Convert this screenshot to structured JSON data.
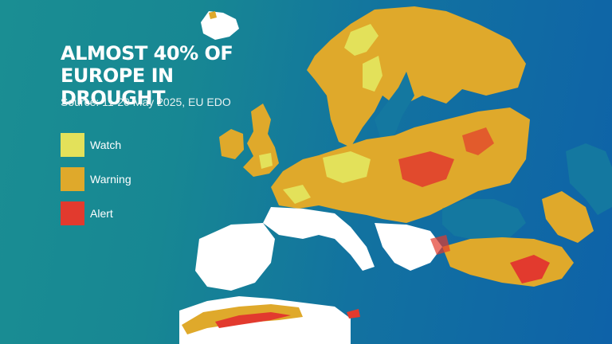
{
  "title": "ALMOST 40% OF\nEUROPE IN DROUGHT",
  "source": "Source: 11-20 May 2025, EU EDO",
  "legend": [
    {
      "label": "Watch",
      "color": "#e3e15a"
    },
    {
      "label": "Warning",
      "color": "#dfa92b"
    },
    {
      "label": "Alert",
      "color": "#e23a2e"
    }
  ],
  "colors": {
    "sea": "#1478a0",
    "land_no_drought": "#ffffff",
    "watch": "#e3e15a",
    "warning": "#dfa92b",
    "alert": "#e23a2e"
  }
}
